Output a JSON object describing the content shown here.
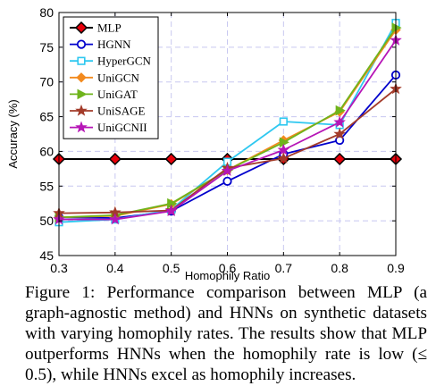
{
  "chart_data": {
    "type": "line",
    "xlabel": "Homophily Ratio",
    "ylabel": "Accuracy (%)",
    "x": [
      0.3,
      0.4,
      0.5,
      0.6,
      0.7,
      0.8,
      0.9
    ],
    "x_tick_labels": [
      "0.3",
      "0.4",
      "0.5",
      "0.6",
      "0.7",
      "0.8",
      "0.9"
    ],
    "y_ticks": [
      45,
      50,
      55,
      60,
      65,
      70,
      75,
      80
    ],
    "xlim": [
      0.3,
      0.9
    ],
    "ylim": [
      45,
      80
    ],
    "grid": true,
    "legend_position": "top-left",
    "series": [
      {
        "name": "MLP",
        "color": "#000000",
        "marker": "diamond",
        "marker_fill": "#e8000b",
        "values": [
          58.9,
          58.9,
          58.9,
          58.9,
          58.9,
          58.9,
          58.9
        ]
      },
      {
        "name": "HGNN",
        "color": "#0000cc",
        "marker": "circle",
        "marker_fill": "none",
        "values": [
          50.5,
          50.4,
          51.4,
          55.7,
          59.6,
          61.6,
          71.0
        ]
      },
      {
        "name": "HyperGCN",
        "color": "#2fc8f0",
        "marker": "square",
        "marker_fill": "none",
        "values": [
          49.8,
          50.2,
          51.6,
          58.5,
          64.3,
          63.8,
          78.5
        ]
      },
      {
        "name": "UniGCN",
        "color": "#f28a1e",
        "marker": "diamond",
        "marker_fill": "#f28a1e",
        "values": [
          50.5,
          50.7,
          52.4,
          57.3,
          61.6,
          65.7,
          77.5
        ]
      },
      {
        "name": "UniGAT",
        "color": "#6fb41c",
        "marker": "triangle",
        "marker_fill": "#6fb41c",
        "values": [
          50.5,
          50.8,
          52.5,
          57.3,
          61.3,
          65.9,
          77.8
        ]
      },
      {
        "name": "UniSAGE",
        "color": "#a33b2a",
        "marker": "star",
        "marker_fill": "#a33b2a",
        "values": [
          51.1,
          51.2,
          51.5,
          57.6,
          59.0,
          62.5,
          69.0
        ]
      },
      {
        "name": "UniGCNII",
        "color": "#b615b6",
        "marker": "star",
        "marker_fill": "#b615b6",
        "values": [
          50.2,
          50.2,
          51.4,
          57.2,
          60.2,
          64.2,
          76.0
        ]
      }
    ]
  },
  "caption": "Figure 1: Performance comparison between MLP (a graph-agnostic method) and HNNs on synthetic datasets with varying homophily rates. The results show that MLP outperforms HNNs when the homophily rate is low (≤ 0.5), while HNNs excel as homophily increases."
}
